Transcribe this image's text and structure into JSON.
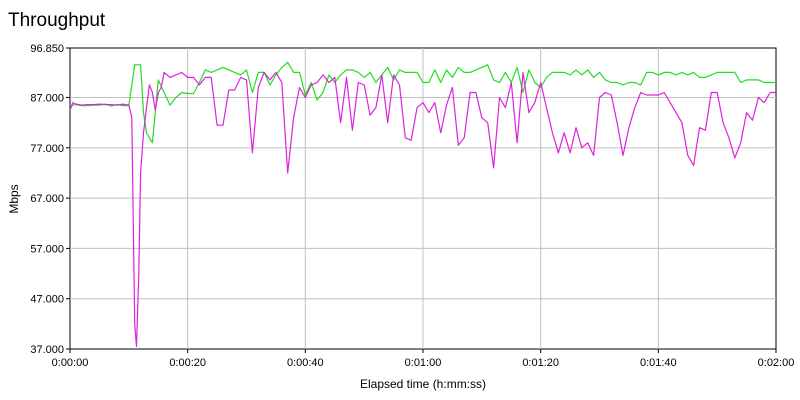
{
  "chart_data": {
    "type": "line",
    "title": "Throughput",
    "xlabel": "Elapsed time (h:mm:ss)",
    "ylabel": "Mbps",
    "xlim": [
      0,
      120
    ],
    "ylim": [
      37.0,
      96.85
    ],
    "grid": true,
    "y_ticks": [
      {
        "value": 37.0,
        "label": "37.000"
      },
      {
        "value": 47.0,
        "label": "47.000"
      },
      {
        "value": 57.0,
        "label": "57.000"
      },
      {
        "value": 67.0,
        "label": "67.000"
      },
      {
        "value": 77.0,
        "label": "77.000"
      },
      {
        "value": 87.0,
        "label": "87.000"
      },
      {
        "value": 96.85,
        "label": "96.850"
      }
    ],
    "x_ticks": [
      {
        "value": 0,
        "label": "0:00:00"
      },
      {
        "value": 20,
        "label": "0:00:20"
      },
      {
        "value": 40,
        "label": "0:00:40"
      },
      {
        "value": 60,
        "label": "0:01:00"
      },
      {
        "value": 80,
        "label": "0:01:20"
      },
      {
        "value": 100,
        "label": "0:01:40"
      },
      {
        "value": 120,
        "label": "0:02:00"
      }
    ],
    "series": [
      {
        "color": "#22dd22",
        "points": [
          [
            0,
            85.4
          ],
          [
            1,
            85.6
          ],
          [
            2,
            85.4
          ],
          [
            3,
            85.4
          ],
          [
            4,
            85.5
          ],
          [
            5,
            85.5
          ],
          [
            6,
            85.7
          ],
          [
            7,
            85.3
          ],
          [
            8,
            85.6
          ],
          [
            9,
            85.4
          ],
          [
            10,
            85.4
          ],
          [
            11,
            93.5
          ],
          [
            12,
            93.5
          ],
          [
            12.5,
            84
          ],
          [
            13,
            80
          ],
          [
            14,
            78
          ],
          [
            15,
            90.5
          ],
          [
            16,
            88
          ],
          [
            17,
            85.5
          ],
          [
            18,
            87
          ],
          [
            19,
            88
          ],
          [
            20,
            87.8
          ],
          [
            21,
            87.8
          ],
          [
            22,
            90
          ],
          [
            23,
            92.5
          ],
          [
            24,
            92
          ],
          [
            25,
            92.5
          ],
          [
            26,
            93
          ],
          [
            27,
            92.5
          ],
          [
            28,
            92
          ],
          [
            29,
            91.5
          ],
          [
            30,
            92.5
          ],
          [
            31,
            88
          ],
          [
            32,
            92
          ],
          [
            33,
            92
          ],
          [
            34,
            89.5
          ],
          [
            35,
            91.5
          ],
          [
            36,
            93
          ],
          [
            37,
            94
          ],
          [
            38,
            92
          ],
          [
            39,
            92
          ],
          [
            40,
            87.5
          ],
          [
            41,
            90
          ],
          [
            42,
            86.5
          ],
          [
            43,
            88
          ],
          [
            44,
            91.5
          ],
          [
            45,
            90
          ],
          [
            46,
            91.5
          ],
          [
            47,
            92.5
          ],
          [
            48,
            92.5
          ],
          [
            49,
            92
          ],
          [
            50,
            91
          ],
          [
            51,
            92
          ],
          [
            52,
            90
          ],
          [
            53,
            91.5
          ],
          [
            54,
            93
          ],
          [
            55,
            90.5
          ],
          [
            56,
            92.5
          ],
          [
            57,
            92
          ],
          [
            58,
            92
          ],
          [
            59,
            92
          ],
          [
            60,
            90
          ],
          [
            61,
            90
          ],
          [
            62,
            92.5
          ],
          [
            63,
            90
          ],
          [
            64,
            92.5
          ],
          [
            65,
            91
          ],
          [
            66,
            93
          ],
          [
            67,
            92
          ],
          [
            68,
            92
          ],
          [
            69,
            92.5
          ],
          [
            70,
            93
          ],
          [
            71,
            93.5
          ],
          [
            72,
            90.5
          ],
          [
            73,
            90
          ],
          [
            74,
            92
          ],
          [
            75,
            90
          ],
          [
            76,
            93
          ],
          [
            77,
            88
          ],
          [
            78,
            92.5
          ],
          [
            79,
            90
          ],
          [
            80,
            89
          ],
          [
            81,
            91
          ],
          [
            82,
            92
          ],
          [
            83,
            92
          ],
          [
            84,
            92
          ],
          [
            85,
            91.5
          ],
          [
            86,
            92.5
          ],
          [
            87,
            91.5
          ],
          [
            88,
            92.5
          ],
          [
            89,
            91
          ],
          [
            90,
            92
          ],
          [
            91,
            90.5
          ],
          [
            92,
            90
          ],
          [
            93,
            90
          ],
          [
            94,
            89.5
          ],
          [
            95,
            90
          ],
          [
            96,
            90
          ],
          [
            97,
            89.5
          ],
          [
            98,
            92
          ],
          [
            99,
            92
          ],
          [
            100,
            91.5
          ],
          [
            101,
            92
          ],
          [
            102,
            92
          ],
          [
            103,
            91.5
          ],
          [
            104,
            92
          ],
          [
            105,
            91.5
          ],
          [
            106,
            92
          ],
          [
            107,
            91
          ],
          [
            108,
            91
          ],
          [
            109,
            91.5
          ],
          [
            110,
            92
          ],
          [
            111,
            92
          ],
          [
            112,
            92
          ],
          [
            113,
            92
          ],
          [
            114,
            90
          ],
          [
            115,
            90.5
          ],
          [
            116,
            90.5
          ],
          [
            117,
            90.5
          ],
          [
            118,
            90
          ],
          [
            120,
            90
          ]
        ]
      },
      {
        "color": "#dd22dd",
        "points": [
          [
            0,
            84.5
          ],
          [
            0.5,
            86
          ],
          [
            1,
            85.7
          ],
          [
            2,
            85.5
          ],
          [
            3,
            85.6
          ],
          [
            4,
            85.6
          ],
          [
            5,
            85.7
          ],
          [
            6,
            85.6
          ],
          [
            7,
            85.6
          ],
          [
            8,
            85.5
          ],
          [
            9,
            85.7
          ],
          [
            10,
            85.5
          ],
          [
            10.5,
            83
          ],
          [
            11,
            42
          ],
          [
            11.3,
            37.5
          ],
          [
            11.7,
            52
          ],
          [
            12,
            72
          ],
          [
            12.5,
            80
          ],
          [
            13,
            85
          ],
          [
            13.5,
            89.5
          ],
          [
            14,
            88
          ],
          [
            14.5,
            84.5
          ],
          [
            15,
            88
          ],
          [
            15.5,
            89
          ],
          [
            16,
            92
          ],
          [
            17,
            91
          ],
          [
            18,
            91.5
          ],
          [
            19,
            92
          ],
          [
            20,
            91
          ],
          [
            21,
            91
          ],
          [
            22,
            89.5
          ],
          [
            23,
            91
          ],
          [
            24,
            91
          ],
          [
            25,
            81.5
          ],
          [
            26,
            81.5
          ],
          [
            27,
            88.5
          ],
          [
            28,
            88.5
          ],
          [
            29,
            91
          ],
          [
            30,
            90.5
          ],
          [
            31,
            76
          ],
          [
            32,
            89
          ],
          [
            33,
            92
          ],
          [
            34,
            90.5
          ],
          [
            35,
            92
          ],
          [
            36,
            90
          ],
          [
            37,
            72
          ],
          [
            38,
            83
          ],
          [
            39,
            89
          ],
          [
            40,
            87
          ],
          [
            41,
            89.5
          ],
          [
            42,
            90
          ],
          [
            43,
            91.5
          ],
          [
            44,
            90
          ],
          [
            45,
            91
          ],
          [
            46,
            82
          ],
          [
            47,
            91
          ],
          [
            48,
            80.5
          ],
          [
            49,
            90
          ],
          [
            50,
            89.5
          ],
          [
            51,
            83.5
          ],
          [
            52,
            85
          ],
          [
            53,
            91.5
          ],
          [
            54,
            82
          ],
          [
            55,
            91.5
          ],
          [
            56,
            89.5
          ],
          [
            57,
            79
          ],
          [
            58,
            78.5
          ],
          [
            59,
            85
          ],
          [
            60,
            86
          ],
          [
            61,
            84
          ],
          [
            62,
            86
          ],
          [
            63,
            80
          ],
          [
            64,
            85.5
          ],
          [
            65,
            89
          ],
          [
            66,
            77.5
          ],
          [
            67,
            79
          ],
          [
            68,
            88
          ],
          [
            69,
            88
          ],
          [
            70,
            83
          ],
          [
            71,
            82
          ],
          [
            72,
            73
          ],
          [
            73,
            87
          ],
          [
            74,
            85
          ],
          [
            75,
            90
          ],
          [
            76,
            78
          ],
          [
            77,
            92
          ],
          [
            78,
            84
          ],
          [
            79,
            86
          ],
          [
            80,
            90
          ],
          [
            81,
            85
          ],
          [
            82,
            80
          ],
          [
            83,
            76
          ],
          [
            84,
            80
          ],
          [
            85,
            76
          ],
          [
            86,
            81
          ],
          [
            87,
            77
          ],
          [
            88,
            78
          ],
          [
            89,
            75.5
          ],
          [
            90,
            87
          ],
          [
            91,
            88
          ],
          [
            92,
            87.5
          ],
          [
            93,
            82
          ],
          [
            94,
            75.5
          ],
          [
            95,
            81
          ],
          [
            96,
            85
          ],
          [
            97,
            88
          ],
          [
            98,
            87.5
          ],
          [
            99,
            87.5
          ],
          [
            100,
            87.5
          ],
          [
            101,
            88
          ],
          [
            102,
            86
          ],
          [
            103,
            84
          ],
          [
            104,
            82
          ],
          [
            105,
            75.5
          ],
          [
            106,
            73.5
          ],
          [
            107,
            81
          ],
          [
            108,
            80.5
          ],
          [
            109,
            88
          ],
          [
            110,
            88
          ],
          [
            111,
            82
          ],
          [
            112,
            79
          ],
          [
            113,
            75
          ],
          [
            114,
            78
          ],
          [
            115,
            84
          ],
          [
            116,
            82.5
          ],
          [
            117,
            87
          ],
          [
            118,
            86
          ],
          [
            119,
            88
          ],
          [
            120,
            88
          ]
        ]
      }
    ]
  }
}
